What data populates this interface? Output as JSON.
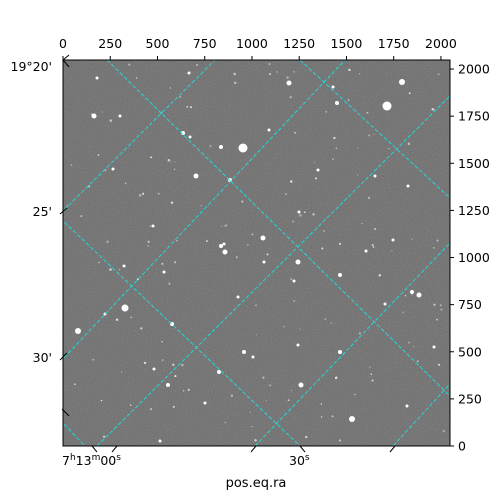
{
  "image": {
    "background": "#6b6b6b",
    "grid_color": "#25d6d6",
    "star_color": "#ffffff"
  },
  "pixel_axes": {
    "top_ticks": [
      "0",
      "250",
      "500",
      "750",
      "1000",
      "1250",
      "1500",
      "1750",
      "2000"
    ],
    "right_ticks": [
      "0",
      "250",
      "500",
      "750",
      "1000",
      "1250",
      "1500",
      "1750",
      "2000"
    ]
  },
  "world_axes": {
    "dec_ticks": [
      "19°20'",
      "25'",
      "30'"
    ],
    "ra_ticks": {
      "first": {
        "base": "7",
        "h": "h",
        "mid": "13",
        "m": "m",
        "rest": "00",
        "s": "s"
      },
      "second": {
        "value": "30",
        "s": "s"
      }
    },
    "xlabel": "pos.eq.ra"
  }
}
